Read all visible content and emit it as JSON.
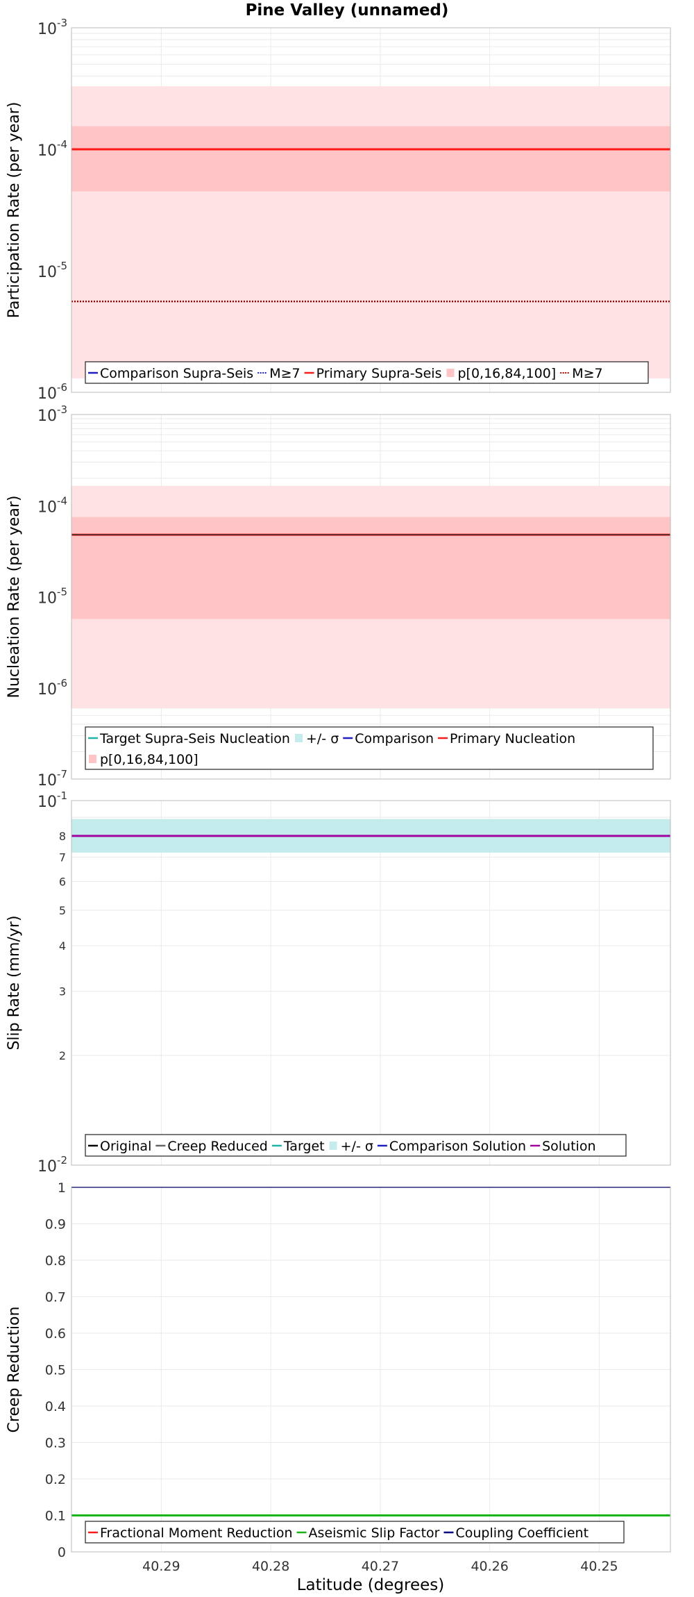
{
  "figure_title": "Pine Valley (unnamed)",
  "x_axis": {
    "label": "Latitude (degrees)",
    "min": 40.2435,
    "max": 40.2982,
    "reversed": true,
    "ticks": [
      "40.29",
      "40.28",
      "40.27",
      "40.26",
      "40.25"
    ]
  },
  "colors": {
    "red": "#ff1a1a",
    "darkred": "#b00000",
    "blue": "#1f1fbf",
    "navy": "#00007f",
    "teal": "#1fb5a6",
    "cyan_band": "#c4ecec",
    "gray": "#666666",
    "green": "#18b418",
    "purple": "#a000a0",
    "pink_outer": "#ffe2e4",
    "pink_inner": "#ffc4c6"
  },
  "chart_data": [
    {
      "type": "line",
      "ylabel": "Participation Rate (per year)",
      "yscale": "log",
      "ylim": [
        1e-06,
        0.001
      ],
      "ytick_labels": [
        {
          "base": "10",
          "exp": "-3"
        },
        {
          "base": "10",
          "exp": "-4"
        },
        {
          "base": "10",
          "exp": "-5"
        },
        {
          "base": "10",
          "exp": "-6"
        }
      ],
      "bands": [
        {
          "name": "p[0,16,84,100] outer",
          "low": 1.3e-06,
          "high": 0.00033,
          "color": "#ffe2e4"
        },
        {
          "name": "p[0,16,84,100] inner",
          "low": 4.5e-05,
          "high": 0.000155,
          "color": "#ffc4c6"
        }
      ],
      "series": [
        {
          "name": "Primary Supra-Seis",
          "value": 0.0001,
          "color": "#ff1a1a",
          "style": "solid",
          "width": 3
        },
        {
          "name": "M≥7",
          "value": 5.6e-06,
          "color": "#b00000",
          "style": "dotted",
          "width": 2.5
        }
      ],
      "legend": [
        {
          "label": "Comparison Supra-Seis",
          "kind": "line",
          "color": "#1f1fbf"
        },
        {
          "label": "M≥7",
          "kind": "dotted",
          "color": "#1f1fbf"
        },
        {
          "label": "Primary Supra-Seis",
          "kind": "line",
          "color": "#ff1a1a"
        },
        {
          "label": "p[0,16,84,100]",
          "kind": "patch",
          "color": "#ffc4c6"
        },
        {
          "label": "M≥7",
          "kind": "dotted",
          "color": "#b00000"
        }
      ]
    },
    {
      "type": "line",
      "ylabel": "Nucleation Rate (per year)",
      "yscale": "log",
      "ylim": [
        1e-07,
        0.001
      ],
      "ytick_labels": [
        {
          "base": "10",
          "exp": "-3"
        },
        {
          "base": "10",
          "exp": "-4"
        },
        {
          "base": "10",
          "exp": "-5"
        },
        {
          "base": "10",
          "exp": "-6"
        },
        {
          "base": "10",
          "exp": "-7"
        }
      ],
      "bands": [
        {
          "name": "p[0,16,84,100] outer",
          "low": 6e-07,
          "high": 0.000165,
          "color": "#ffe2e4"
        },
        {
          "name": "p[0,16,84,100] inner",
          "low": 5.7e-06,
          "high": 7.5e-05,
          "color": "#ffc4c6"
        }
      ],
      "series": [
        {
          "name": "Target Supra-Seis Nucleation",
          "value": 4.8e-05,
          "color": "#1fb5a6",
          "style": "solid",
          "width": 2
        },
        {
          "name": "Comparison",
          "value": 4.8e-05,
          "color": "#1f1fbf",
          "style": "solid",
          "width": 2
        },
        {
          "name": "Primary Nucleation",
          "value": 4.8e-05,
          "color": "#ff1a1a",
          "style": "solid",
          "width": 3
        },
        {
          "name": "Black overlay",
          "value": 4.8e-05,
          "color": "#333333",
          "style": "solid",
          "width": 1.5
        }
      ],
      "legend": [
        {
          "label": "Target Supra-Seis Nucleation",
          "kind": "line",
          "color": "#1fb5a6"
        },
        {
          "label": "+/- σ",
          "kind": "patch",
          "color": "#c4ecec"
        },
        {
          "label": "Comparison",
          "kind": "line",
          "color": "#1f1fbf"
        },
        {
          "label": "Primary Nucleation",
          "kind": "line",
          "color": "#ff1a1a"
        },
        {
          "label": "p[0,16,84,100]",
          "kind": "patch",
          "color": "#ffc4c6"
        }
      ]
    },
    {
      "type": "line",
      "ylabel": "Slip Rate (mm/yr)",
      "yscale": "log",
      "ylim": [
        0.01,
        0.1
      ],
      "ytick_labels": [
        {
          "base": "10",
          "exp": "-1"
        },
        {
          "base": "10",
          "exp": "-2"
        }
      ],
      "minor_ticks": [
        {
          "value": 0.08,
          "label": "8"
        },
        {
          "value": 0.07,
          "label": "7"
        },
        {
          "value": 0.06,
          "label": "6"
        },
        {
          "value": 0.05,
          "label": "5"
        },
        {
          "value": 0.04,
          "label": "4"
        },
        {
          "value": 0.03,
          "label": "3"
        },
        {
          "value": 0.02,
          "label": "2"
        }
      ],
      "bands": [
        {
          "name": "+/- σ",
          "low": 0.072,
          "high": 0.089,
          "color": "#c4ecec"
        }
      ],
      "series": [
        {
          "name": "Target",
          "value": 0.08,
          "color": "#1fb5a6",
          "style": "solid",
          "width": 2
        },
        {
          "name": "Solution",
          "value": 0.08,
          "color": "#a000a0",
          "style": "solid",
          "width": 3
        }
      ],
      "legend": [
        {
          "label": "Original",
          "kind": "line",
          "color": "#000000"
        },
        {
          "label": "Creep Reduced",
          "kind": "line",
          "color": "#666666"
        },
        {
          "label": "Target",
          "kind": "line",
          "color": "#1fb5a6"
        },
        {
          "label": "+/- σ",
          "kind": "patch",
          "color": "#c4ecec"
        },
        {
          "label": "Comparison Solution",
          "kind": "line",
          "color": "#1f1fbf"
        },
        {
          "label": "Solution",
          "kind": "line",
          "color": "#a000a0"
        }
      ]
    },
    {
      "type": "line",
      "ylabel": "Creep Reduction",
      "yscale": "linear",
      "ylim": [
        0,
        1
      ],
      "yticks": [
        {
          "value": 1,
          "label": "1"
        },
        {
          "value": 0.9,
          "label": "0.9"
        },
        {
          "value": 0.8,
          "label": "0.8"
        },
        {
          "value": 0.7,
          "label": "0.7"
        },
        {
          "value": 0.6,
          "label": "0.6"
        },
        {
          "value": 0.5,
          "label": "0.5"
        },
        {
          "value": 0.4,
          "label": "0.4"
        },
        {
          "value": 0.3,
          "label": "0.3"
        },
        {
          "value": 0.2,
          "label": "0.2"
        },
        {
          "value": 0.1,
          "label": "0.1"
        },
        {
          "value": 0,
          "label": "0"
        }
      ],
      "bands": [],
      "series": [
        {
          "name": "Coupling Coefficient",
          "value": 1.0,
          "color": "#00007f",
          "style": "solid",
          "width": 2
        },
        {
          "name": "Aseismic Slip Factor",
          "value": 0.1,
          "color": "#18b418",
          "style": "solid",
          "width": 3
        }
      ],
      "legend": [
        {
          "label": "Fractional Moment Reduction",
          "kind": "line",
          "color": "#ff1a1a"
        },
        {
          "label": "Aseismic Slip Factor",
          "kind": "line",
          "color": "#18b418"
        },
        {
          "label": "Coupling Coefficient",
          "kind": "line",
          "color": "#00007f"
        }
      ]
    }
  ]
}
